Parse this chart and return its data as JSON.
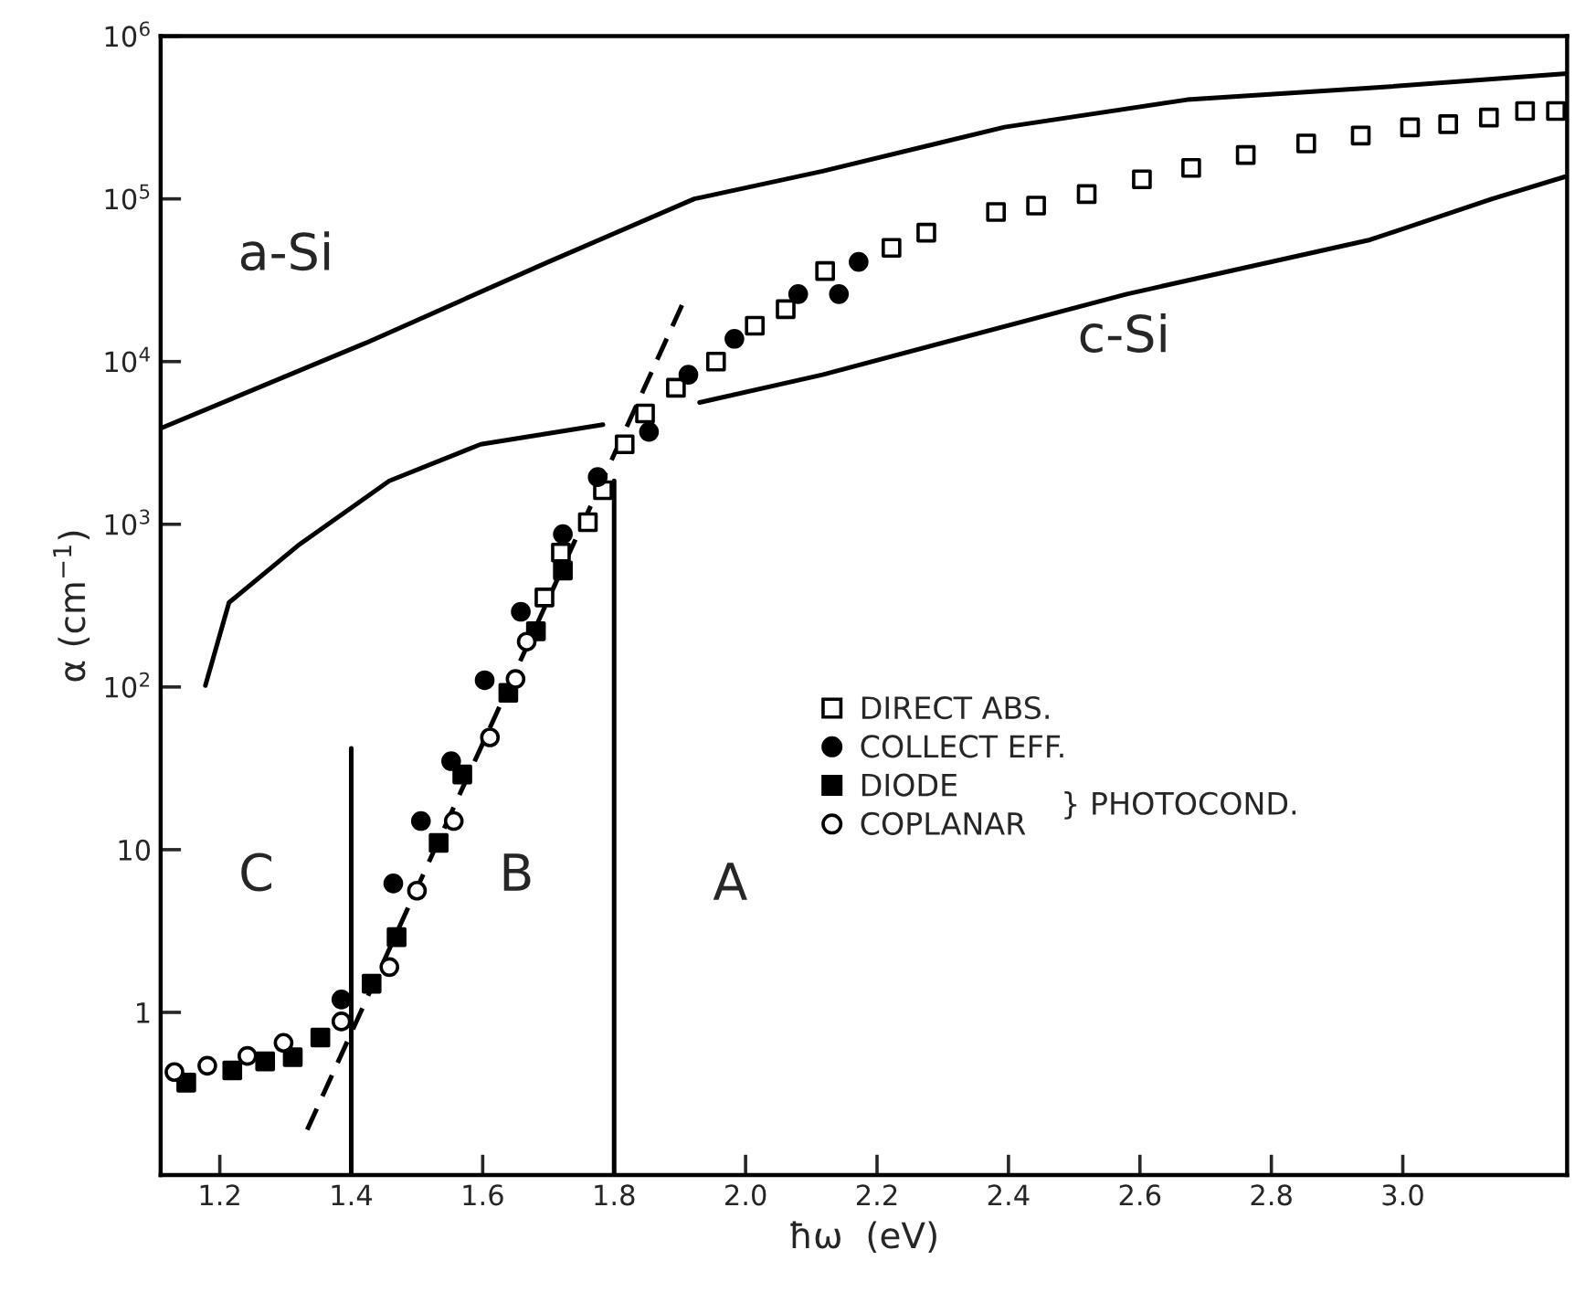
{
  "chart_data": {
    "type": "scatter",
    "xlabel": "ħω  (eV)",
    "ylabel": "α (cm$^{−1}$)",
    "xlim": [
      1.11,
      3.25
    ],
    "ylim": [
      0.1,
      1000000
    ],
    "log": "y",
    "grid": false,
    "legend": "center",
    "xticks": [
      1.2,
      1.4,
      1.6,
      1.8,
      {
        "value": 2,
        "label": "2.0"
      },
      2.2,
      2.4,
      2.6,
      2.8,
      {
        "value": 3,
        "label": "3.0"
      }
    ],
    "yticks": [
      {
        "value": 0.1,
        "label": null
      },
      1,
      10,
      {
        "value": 100,
        "label": "10$^{2}$"
      },
      {
        "value": 1000,
        "label": "10$^{3}$"
      },
      {
        "value": 10000,
        "label": "10$^{4}$"
      },
      {
        "value": 100000,
        "label": "10$^{5}$"
      },
      {
        "value": 1000000,
        "label": "10$^{6}$"
      }
    ],
    "series": [
      {
        "type": "line",
        "color": "#000000",
        "marker": "none",
        "line_style": "solid",
        "x": [
          1.111,
          1.422,
          1.7,
          1.922,
          2.117,
          2.394,
          2.672,
          2.95,
          3.25
        ],
        "values": [
          3900,
          13000,
          41000,
          100000,
          148000,
          276000,
          407000,
          480000,
          590000
        ]
      },
      {
        "type": "line",
        "color": "#000000",
        "marker": "none",
        "line_style": "solid",
        "x": [
          1.178,
          1.214,
          1.319,
          1.458,
          1.597,
          1.783
        ],
        "values": [
          102,
          330,
          740,
          1850,
          3100,
          4100
        ]
      },
      {
        "type": "line",
        "color": "#000000",
        "marker": "none",
        "line_style": "solid",
        "x": [
          1.93,
          2.117,
          2.58,
          2.95,
          3.136,
          3.25
        ],
        "values": [
          5600,
          8300,
          26000,
          56000,
          100000,
          138000
        ]
      },
      {
        "type": "line",
        "color": "#000000",
        "marker": "none",
        "line_style": "dashed",
        "x": [
          1.333,
          1.908
        ],
        "values": [
          0.19,
          24500
        ]
      },
      {
        "type": "line",
        "color": "#000000",
        "marker": "none",
        "line_style": "solid",
        "x": [
          1.4,
          1.4
        ],
        "values": [
          0.1,
          42
        ]
      },
      {
        "type": "line",
        "color": "#000000",
        "marker": "none",
        "line_style": "solid",
        "x": [
          1.8,
          1.8
        ],
        "values": [
          0.1,
          1850
        ]
      },
      {
        "type": "scatter",
        "name": "DIRECT ABS.",
        "color": "#ffffff",
        "marker": "square",
        "x": [
          1.694,
          1.719,
          1.76,
          1.783,
          1.816,
          1.847,
          1.894,
          1.955,
          2.014,
          2.061,
          2.121,
          2.222,
          2.275,
          2.381,
          2.442,
          2.519,
          2.603,
          2.678,
          2.761,
          2.853,
          2.936,
          3.011,
          3.069,
          3.131,
          3.186,
          3.233
        ],
        "values": [
          355,
          670,
          1030,
          1620,
          3100,
          4800,
          6900,
          10000,
          16600,
          21000,
          36000,
          50000,
          62000,
          83000,
          91000,
          107000,
          132000,
          155000,
          186000,
          219000,
          245000,
          275000,
          288000,
          316000,
          347000,
          347000
        ]
      },
      {
        "type": "scatter",
        "name": "COLLECT EFF.",
        "color": "#000000",
        "marker": "circle",
        "x": [
          1.385,
          1.464,
          1.506,
          1.552,
          1.603,
          1.658,
          1.722,
          1.775,
          1.853,
          1.913,
          1.983,
          2.08,
          2.142,
          2.172
        ],
        "values": [
          1.2,
          6.2,
          15,
          35,
          110,
          290,
          870,
          1950,
          3700,
          8300,
          13800,
          26000,
          26000,
          41000
        ]
      },
      {
        "type": "scatter",
        "name": "DIODE",
        "color": "#000000",
        "marker": "square",
        "x": [
          1.149,
          1.219,
          1.269,
          1.311,
          1.353,
          1.431,
          1.469,
          1.533,
          1.569,
          1.639,
          1.681,
          1.722
        ],
        "values": [
          0.37,
          0.44,
          0.5,
          0.53,
          0.7,
          1.5,
          2.9,
          11,
          29,
          92,
          220,
          520
        ]
      },
      {
        "type": "scatter",
        "name": "COPLANAR",
        "color": "#ffffff",
        "marker": "circle",
        "x": [
          1.131,
          1.181,
          1.242,
          1.297,
          1.385,
          1.458,
          1.5,
          1.556,
          1.611,
          1.65,
          1.667
        ],
        "values": [
          0.43,
          0.47,
          0.54,
          0.65,
          0.88,
          1.9,
          5.6,
          15,
          49,
          112,
          190
        ]
      }
    ],
    "annotations": [
      "a-Si",
      "c-Si",
      "C",
      "B",
      "A",
      "} PHOTOCOND."
    ]
  }
}
